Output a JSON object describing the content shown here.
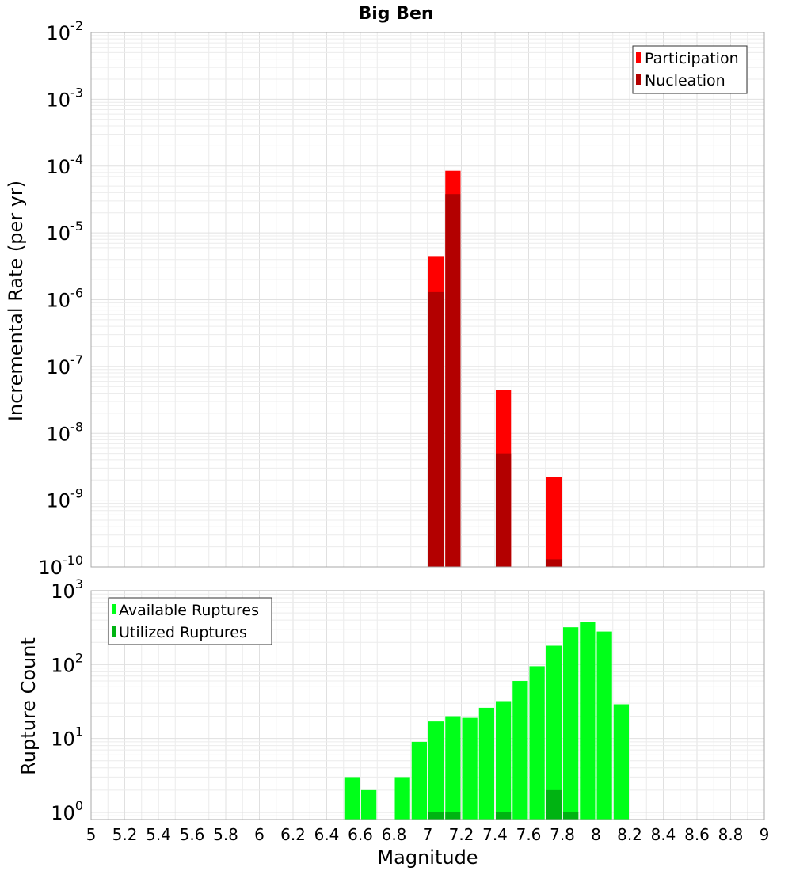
{
  "chart_data": [
    {
      "type": "bar",
      "title": "Big Ben",
      "ylabel": "Incremental Rate (per yr)",
      "xlabel": "",
      "yscale": "log",
      "ylim": [
        1e-10,
        0.01
      ],
      "xlim": [
        5,
        9
      ],
      "grid": true,
      "legend_position": "top-right",
      "y_ticks": [
        {
          "base": "10",
          "exp": "-10"
        },
        {
          "base": "10",
          "exp": "-9"
        },
        {
          "base": "10",
          "exp": "-8"
        },
        {
          "base": "10",
          "exp": "-7"
        },
        {
          "base": "10",
          "exp": "-6"
        },
        {
          "base": "10",
          "exp": "-5"
        },
        {
          "base": "10",
          "exp": "-4"
        },
        {
          "base": "10",
          "exp": "-3"
        },
        {
          "base": "10",
          "exp": "-2"
        }
      ],
      "series": [
        {
          "name": "Participation",
          "color": "#ff0000",
          "x": [
            7.05,
            7.15,
            7.45,
            7.75
          ],
          "values": [
            4.5e-06,
            8.5e-05,
            4.5e-08,
            2.2e-09
          ]
        },
        {
          "name": "Nucleation",
          "color": "#b30000",
          "x": [
            7.05,
            7.15,
            7.45,
            7.75
          ],
          "values": [
            1.3e-06,
            3.8e-05,
            5e-09,
            1.3e-10
          ]
        }
      ]
    },
    {
      "type": "bar",
      "title": "",
      "ylabel": "Rupture Count",
      "xlabel": "Magnitude",
      "yscale": "log",
      "ylim": [
        0.8,
        1000
      ],
      "xlim": [
        5,
        9
      ],
      "grid": true,
      "legend_position": "top-left",
      "x_ticks": [
        "5",
        "5.2",
        "5.4",
        "5.6",
        "5.8",
        "6",
        "6.2",
        "6.4",
        "6.6",
        "6.8",
        "7",
        "7.2",
        "7.4",
        "7.6",
        "7.8",
        "8",
        "8.2",
        "8.4",
        "8.6",
        "8.8",
        "9"
      ],
      "y_ticks": [
        {
          "base": "10",
          "exp": "0"
        },
        {
          "base": "10",
          "exp": "1"
        },
        {
          "base": "10",
          "exp": "2"
        },
        {
          "base": "10",
          "exp": "3"
        }
      ],
      "series": [
        {
          "name": "Available Ruptures",
          "color": "#00ff19",
          "x": [
            6.55,
            6.65,
            6.85,
            6.95,
            7.05,
            7.15,
            7.25,
            7.35,
            7.45,
            7.55,
            7.65,
            7.75,
            7.85,
            7.95,
            8.05,
            8.15
          ],
          "values": [
            3,
            2,
            3,
            9,
            17,
            20,
            19,
            26,
            32,
            60,
            95,
            180,
            320,
            380,
            280,
            29
          ]
        },
        {
          "name": "Utilized Ruptures",
          "color": "#00b312",
          "x": [
            7.05,
            7.15,
            7.45,
            7.75,
            7.85
          ],
          "values": [
            1,
            1,
            1,
            2,
            1
          ]
        }
      ]
    }
  ]
}
